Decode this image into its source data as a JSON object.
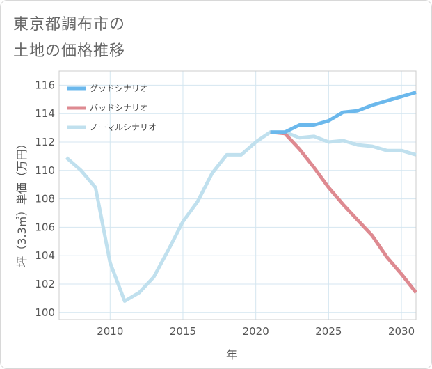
{
  "title_line1": "東京都調布市の",
  "title_line2": "土地の価格推移",
  "chart_data": {
    "type": "line",
    "title": "東京都調布市の土地の価格推移",
    "xlabel": "年",
    "ylabel": "坪（3.3㎡）単価（万円）",
    "xlim": [
      2006.5,
      2031
    ],
    "ylim": [
      99.5,
      117
    ],
    "xticks": [
      2010,
      2015,
      2020,
      2025,
      2030
    ],
    "yticks": [
      100,
      102,
      104,
      106,
      108,
      110,
      112,
      114,
      116
    ],
    "grid": true,
    "legend_position": "top-left",
    "series": [
      {
        "name": "グッドシナリオ",
        "color": "#6bb8ec",
        "x": [
          2021,
          2022,
          2023,
          2024,
          2025,
          2026,
          2027,
          2028,
          2029,
          2030,
          2031
        ],
        "y": [
          112.7,
          112.7,
          113.2,
          113.2,
          113.5,
          114.1,
          114.2,
          114.6,
          114.9,
          115.2,
          115.5
        ]
      },
      {
        "name": "バッドシナリオ",
        "color": "#de8a91",
        "x": [
          2021,
          2022,
          2023,
          2024,
          2025,
          2026,
          2027,
          2028,
          2029,
          2030,
          2031
        ],
        "y": [
          112.7,
          112.6,
          111.5,
          110.2,
          108.8,
          107.6,
          106.5,
          105.4,
          103.9,
          102.7,
          101.4
        ]
      },
      {
        "name": "ノーマルシナリオ",
        "color": "#c0e0ee",
        "x": [
          2007,
          2008,
          2009,
          2010,
          2011,
          2012,
          2013,
          2014,
          2015,
          2016,
          2017,
          2018,
          2019,
          2020,
          2021,
          2022,
          2023,
          2024,
          2025,
          2026,
          2027,
          2028,
          2029,
          2030,
          2031
        ],
        "y": [
          110.9,
          110.0,
          108.8,
          103.5,
          100.8,
          101.4,
          102.5,
          104.4,
          106.4,
          107.8,
          109.8,
          111.1,
          111.1,
          112.0,
          112.7,
          112.7,
          112.3,
          112.4,
          112.0,
          112.1,
          111.8,
          111.7,
          111.4,
          111.4,
          111.1
        ]
      }
    ],
    "draw_order": [
      2,
      1,
      0
    ]
  }
}
